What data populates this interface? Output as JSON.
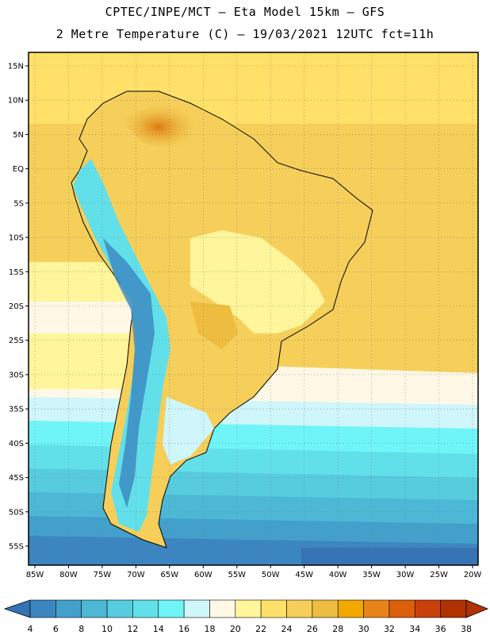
{
  "header": {
    "line1": "CPTEC/INPE/MCT –  Eta Model 15km – GFS",
    "line2": "2 Metre Temperature (C) – 19/03/2021 12UTC fct=11h"
  },
  "map": {
    "lat_labels": [
      "15N",
      "10N",
      "5N",
      "EQ",
      "5S",
      "10S",
      "15S",
      "20S",
      "25S",
      "30S",
      "35S",
      "40S",
      "45S",
      "50S",
      "55S"
    ],
    "lon_labels": [
      "85W",
      "80W",
      "75W",
      "70W",
      "65W",
      "60W",
      "55W",
      "50W",
      "45W",
      "40W",
      "35W",
      "30W",
      "25W",
      "20W"
    ],
    "grid": true
  },
  "colorbar": {
    "labels": [
      "4",
      "6",
      "8",
      "10",
      "12",
      "14",
      "16",
      "18",
      "20",
      "22",
      "24",
      "26",
      "28",
      "30",
      "32",
      "34",
      "36",
      "38"
    ],
    "colors": [
      "#3573b4",
      "#3b86c0",
      "#43a0cb",
      "#4cb8d6",
      "#57ccdf",
      "#62e0ea",
      "#6ff5f7",
      "#cff6fa",
      "#fff8e6",
      "#fff59a",
      "#ffe068",
      "#f5cf5a",
      "#eebd40",
      "#f3a800",
      "#e78318",
      "#dc5f0c",
      "#c8410c",
      "#b03200"
    ]
  }
}
